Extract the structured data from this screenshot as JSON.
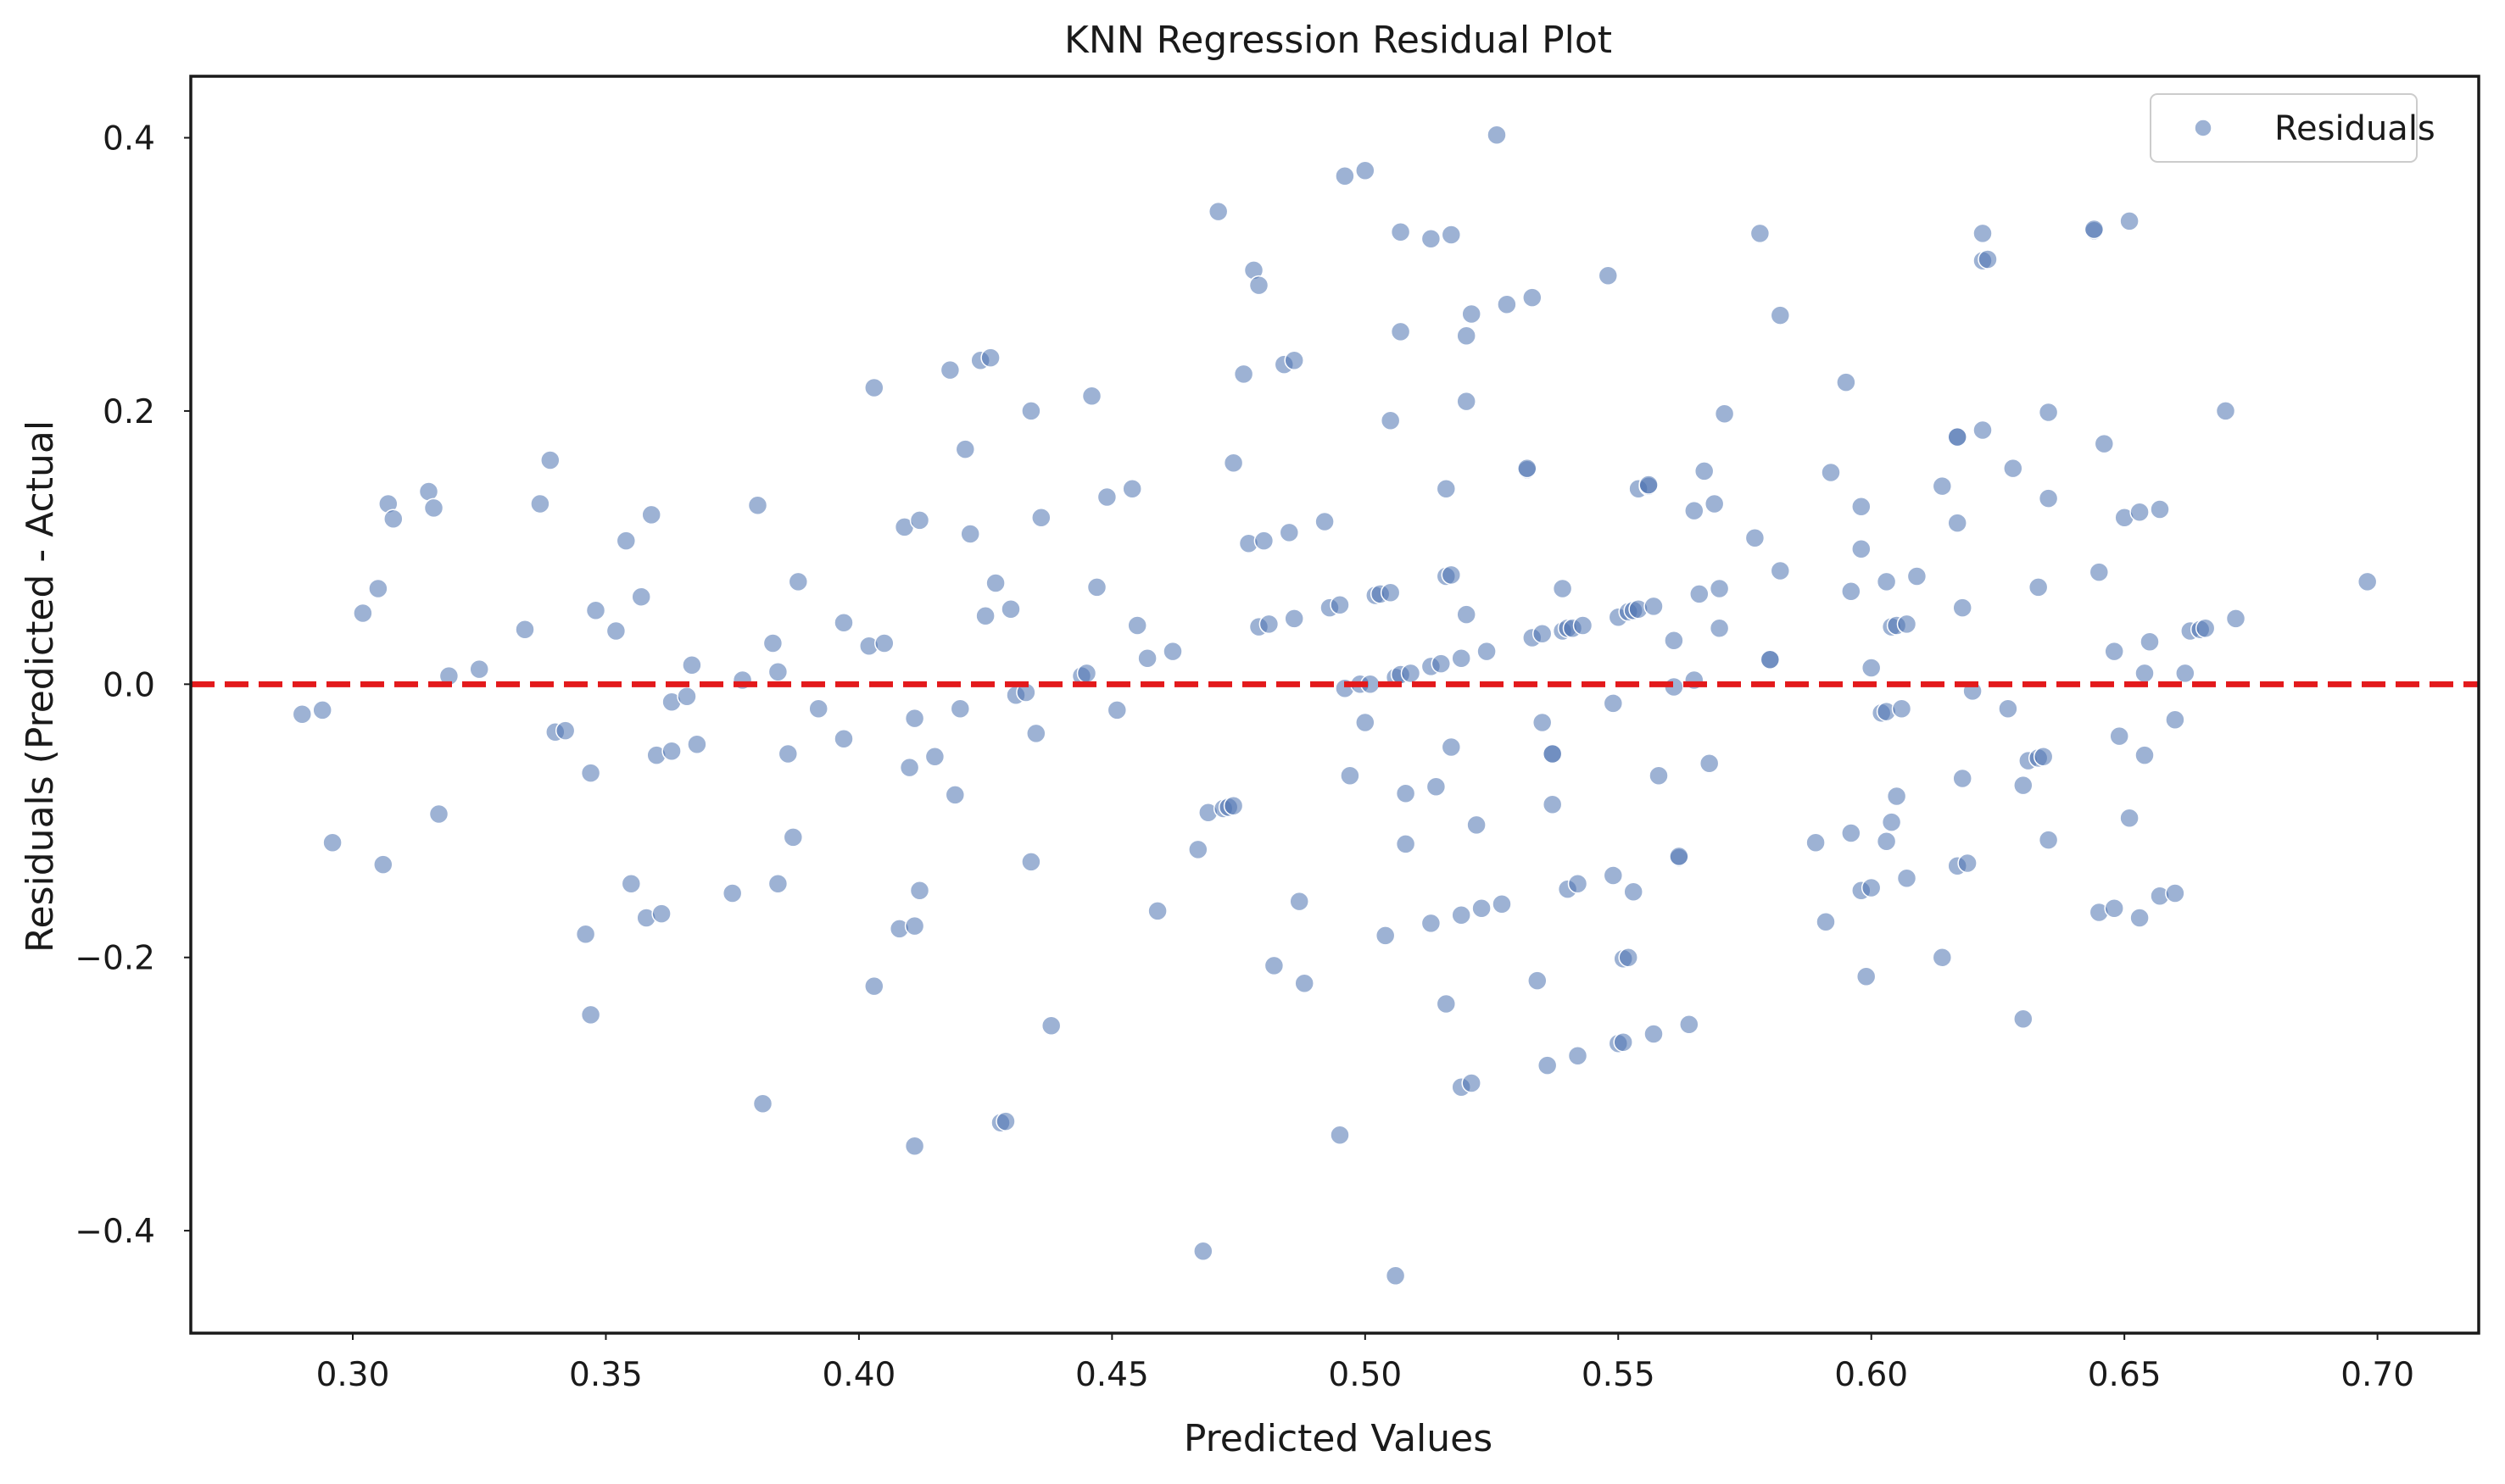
{
  "chart_data": {
    "type": "scatter",
    "title": "KNN Regression Residual Plot",
    "xlabel": "Predicted Values",
    "ylabel": "Residuals (Predicted - Actual",
    "xlim": [
      0.268,
      0.72
    ],
    "ylim": [
      -0.475,
      0.445
    ],
    "xticks": [
      0.3,
      0.35,
      0.4,
      0.45,
      0.5,
      0.55,
      0.6,
      0.65,
      0.7
    ],
    "xtick_labels": [
      "0.30",
      "0.35",
      "0.40",
      "0.45",
      "0.50",
      "0.55",
      "0.60",
      "0.65",
      "0.70"
    ],
    "yticks": [
      -0.4,
      -0.2,
      0.0,
      0.2,
      0.4
    ],
    "ytick_labels": [
      "−0.4",
      "−0.2",
      "0.0",
      "0.2",
      "0.4"
    ],
    "grid": false,
    "legend": {
      "placement": "top-right",
      "entries": [
        "Residuals"
      ]
    },
    "reference_line": {
      "y": 0.0,
      "color": "#e31a1c",
      "style": "dashed"
    },
    "colors": {
      "points": "#4c72b0",
      "reference_line": "#e31a1c",
      "frame": "#1a1a1a"
    },
    "series": [
      {
        "name": "Residuals",
        "points": [
          [
            0.29,
            -0.022
          ],
          [
            0.294,
            -0.019
          ],
          [
            0.296,
            -0.116
          ],
          [
            0.302,
            0.052
          ],
          [
            0.305,
            0.07
          ],
          [
            0.306,
            -0.132
          ],
          [
            0.307,
            0.132
          ],
          [
            0.308,
            0.121
          ],
          [
            0.315,
            0.141
          ],
          [
            0.316,
            0.129
          ],
          [
            0.317,
            -0.095
          ],
          [
            0.319,
            0.006
          ],
          [
            0.325,
            0.011
          ],
          [
            0.334,
            0.04
          ],
          [
            0.337,
            0.132
          ],
          [
            0.339,
            0.164
          ],
          [
            0.34,
            -0.035
          ],
          [
            0.342,
            -0.034
          ],
          [
            0.346,
            -0.183
          ],
          [
            0.347,
            -0.242
          ],
          [
            0.347,
            -0.065
          ],
          [
            0.348,
            0.054
          ],
          [
            0.352,
            0.039
          ],
          [
            0.354,
            0.105
          ],
          [
            0.355,
            -0.146
          ],
          [
            0.357,
            0.064
          ],
          [
            0.358,
            -0.171
          ],
          [
            0.359,
            0.124
          ],
          [
            0.36,
            -0.052
          ],
          [
            0.361,
            -0.168
          ],
          [
            0.363,
            -0.013
          ],
          [
            0.363,
            -0.049
          ],
          [
            0.366,
            -0.009
          ],
          [
            0.367,
            0.014
          ],
          [
            0.368,
            -0.044
          ],
          [
            0.375,
            -0.153
          ],
          [
            0.377,
            0.003
          ],
          [
            0.38,
            0.131
          ],
          [
            0.381,
            -0.307
          ],
          [
            0.383,
            0.03
          ],
          [
            0.384,
            -0.146
          ],
          [
            0.384,
            0.009
          ],
          [
            0.386,
            -0.051
          ],
          [
            0.387,
            -0.112
          ],
          [
            0.388,
            0.075
          ],
          [
            0.392,
            -0.018
          ],
          [
            0.397,
            -0.04
          ],
          [
            0.397,
            0.045
          ],
          [
            0.402,
            0.028
          ],
          [
            0.403,
            0.217
          ],
          [
            0.403,
            -0.221
          ],
          [
            0.405,
            0.03
          ],
          [
            0.408,
            -0.179
          ],
          [
            0.409,
            0.115
          ],
          [
            0.41,
            -0.061
          ],
          [
            0.411,
            -0.025
          ],
          [
            0.411,
            -0.177
          ],
          [
            0.412,
            -0.151
          ],
          [
            0.412,
            0.12
          ],
          [
            0.411,
            -0.338
          ],
          [
            0.415,
            -0.053
          ],
          [
            0.418,
            0.23
          ],
          [
            0.419,
            -0.081
          ],
          [
            0.42,
            -0.018
          ],
          [
            0.421,
            0.172
          ],
          [
            0.422,
            0.11
          ],
          [
            0.424,
            0.237
          ],
          [
            0.425,
            0.05
          ],
          [
            0.426,
            0.239
          ],
          [
            0.427,
            0.074
          ],
          [
            0.428,
            -0.321
          ],
          [
            0.429,
            -0.32
          ],
          [
            0.43,
            0.055
          ],
          [
            0.431,
            -0.008
          ],
          [
            0.433,
            -0.006
          ],
          [
            0.434,
            -0.13
          ],
          [
            0.434,
            0.2
          ],
          [
            0.435,
            -0.036
          ],
          [
            0.436,
            0.122
          ],
          [
            0.438,
            -0.25
          ],
          [
            0.444,
            0.006
          ],
          [
            0.445,
            0.008
          ],
          [
            0.446,
            0.211
          ],
          [
            0.447,
            0.071
          ],
          [
            0.449,
            0.137
          ],
          [
            0.451,
            -0.019
          ],
          [
            0.454,
            0.143
          ],
          [
            0.455,
            0.043
          ],
          [
            0.457,
            0.019
          ],
          [
            0.459,
            -0.166
          ],
          [
            0.462,
            0.024
          ],
          [
            0.467,
            -0.121
          ],
          [
            0.468,
            -0.415
          ],
          [
            0.469,
            -0.094
          ],
          [
            0.471,
            0.346
          ],
          [
            0.472,
            -0.091
          ],
          [
            0.473,
            -0.09
          ],
          [
            0.474,
            -0.089
          ],
          [
            0.474,
            0.162
          ],
          [
            0.476,
            0.227
          ],
          [
            0.477,
            0.103
          ],
          [
            0.478,
            0.303
          ],
          [
            0.479,
            0.292
          ],
          [
            0.479,
            0.042
          ],
          [
            0.48,
            0.105
          ],
          [
            0.481,
            0.044
          ],
          [
            0.482,
            -0.206
          ],
          [
            0.484,
            0.234
          ],
          [
            0.485,
            0.111
          ],
          [
            0.486,
            0.237
          ],
          [
            0.486,
            0.048
          ],
          [
            0.487,
            -0.159
          ],
          [
            0.488,
            -0.219
          ],
          [
            0.492,
            0.119
          ],
          [
            0.493,
            0.056
          ],
          [
            0.495,
            0.058
          ],
          [
            0.495,
            -0.33
          ],
          [
            0.496,
            -0.003
          ],
          [
            0.496,
            0.372
          ],
          [
            0.497,
            -0.067
          ],
          [
            0.499,
            0.0
          ],
          [
            0.5,
            0.376
          ],
          [
            0.5,
            -0.028
          ],
          [
            0.501,
            0.0
          ],
          [
            0.502,
            0.065
          ],
          [
            0.503,
            0.066
          ],
          [
            0.504,
            -0.184
          ],
          [
            0.505,
            0.193
          ],
          [
            0.505,
            0.067
          ],
          [
            0.506,
            0.005
          ],
          [
            0.506,
            -0.433
          ],
          [
            0.507,
            0.331
          ],
          [
            0.507,
            0.258
          ],
          [
            0.507,
            0.007
          ],
          [
            0.508,
            -0.08
          ],
          [
            0.508,
            -0.117
          ],
          [
            0.509,
            0.008
          ],
          [
            0.513,
            0.013
          ],
          [
            0.513,
            -0.175
          ],
          [
            0.513,
            0.326
          ],
          [
            0.514,
            -0.075
          ],
          [
            0.515,
            0.015
          ],
          [
            0.516,
            -0.234
          ],
          [
            0.516,
            0.079
          ],
          [
            0.516,
            0.143
          ],
          [
            0.517,
            0.08
          ],
          [
            0.517,
            0.329
          ],
          [
            0.517,
            -0.046
          ],
          [
            0.519,
            -0.295
          ],
          [
            0.519,
            0.019
          ],
          [
            0.519,
            -0.169
          ],
          [
            0.52,
            0.051
          ],
          [
            0.52,
            0.255
          ],
          [
            0.52,
            0.207
          ],
          [
            0.521,
            0.271
          ],
          [
            0.521,
            -0.292
          ],
          [
            0.522,
            -0.103
          ],
          [
            0.523,
            -0.164
          ],
          [
            0.524,
            0.024
          ],
          [
            0.526,
            0.402
          ],
          [
            0.527,
            -0.161
          ],
          [
            0.528,
            0.278
          ],
          [
            0.532,
            0.157
          ],
          [
            0.532,
            0.158
          ],
          [
            0.533,
            0.283
          ],
          [
            0.533,
            0.034
          ],
          [
            0.534,
            -0.217
          ],
          [
            0.535,
            -0.028
          ],
          [
            0.535,
            0.037
          ],
          [
            0.536,
            -0.279
          ],
          [
            0.537,
            -0.051
          ],
          [
            0.537,
            -0.088
          ],
          [
            0.537,
            -0.051
          ],
          [
            0.539,
            0.039
          ],
          [
            0.539,
            0.07
          ],
          [
            0.54,
            0.041
          ],
          [
            0.54,
            -0.15
          ],
          [
            0.541,
            0.041
          ],
          [
            0.542,
            -0.146
          ],
          [
            0.542,
            -0.272
          ],
          [
            0.543,
            0.043
          ],
          [
            0.548,
            0.299
          ],
          [
            0.549,
            -0.014
          ],
          [
            0.549,
            -0.14
          ],
          [
            0.55,
            0.049
          ],
          [
            0.55,
            -0.263
          ],
          [
            0.551,
            -0.262
          ],
          [
            0.551,
            -0.201
          ],
          [
            0.552,
            -0.2
          ],
          [
            0.552,
            0.053
          ],
          [
            0.553,
            0.054
          ],
          [
            0.553,
            -0.152
          ],
          [
            0.554,
            0.143
          ],
          [
            0.554,
            0.055
          ],
          [
            0.556,
            0.145
          ],
          [
            0.556,
            0.146
          ],
          [
            0.557,
            0.057
          ],
          [
            0.557,
            -0.256
          ],
          [
            0.558,
            -0.067
          ],
          [
            0.561,
            0.032
          ],
          [
            0.561,
            -0.002
          ],
          [
            0.562,
            -0.127
          ],
          [
            0.562,
            -0.126
          ],
          [
            0.564,
            -0.249
          ],
          [
            0.565,
            0.127
          ],
          [
            0.565,
            0.003
          ],
          [
            0.566,
            0.066
          ],
          [
            0.567,
            0.156
          ],
          [
            0.568,
            -0.058
          ],
          [
            0.569,
            0.132
          ],
          [
            0.57,
            0.041
          ],
          [
            0.57,
            0.07
          ],
          [
            0.571,
            0.198
          ],
          [
            0.577,
            0.107
          ],
          [
            0.578,
            0.33
          ],
          [
            0.58,
            0.018
          ],
          [
            0.58,
            0.018
          ],
          [
            0.582,
            0.27
          ],
          [
            0.582,
            0.083
          ],
          [
            0.589,
            -0.116
          ],
          [
            0.591,
            -0.174
          ],
          [
            0.592,
            0.155
          ],
          [
            0.595,
            0.221
          ],
          [
            0.596,
            -0.109
          ],
          [
            0.596,
            0.068
          ],
          [
            0.598,
            0.099
          ],
          [
            0.598,
            0.13
          ],
          [
            0.598,
            -0.151
          ],
          [
            0.599,
            -0.214
          ],
          [
            0.6,
            -0.149
          ],
          [
            0.6,
            0.012
          ],
          [
            0.602,
            -0.021
          ],
          [
            0.603,
            -0.02
          ],
          [
            0.603,
            -0.115
          ],
          [
            0.603,
            0.075
          ],
          [
            0.604,
            0.042
          ],
          [
            0.604,
            -0.101
          ],
          [
            0.605,
            -0.082
          ],
          [
            0.605,
            0.043
          ],
          [
            0.606,
            -0.018
          ],
          [
            0.607,
            0.044
          ],
          [
            0.607,
            -0.142
          ],
          [
            0.609,
            0.079
          ],
          [
            0.614,
            -0.2
          ],
          [
            0.614,
            0.145
          ],
          [
            0.617,
            0.181
          ],
          [
            0.617,
            0.118
          ],
          [
            0.617,
            -0.133
          ],
          [
            0.617,
            0.181
          ],
          [
            0.618,
            -0.069
          ],
          [
            0.618,
            0.056
          ],
          [
            0.619,
            -0.131
          ],
          [
            0.62,
            -0.005
          ],
          [
            0.622,
            0.33
          ],
          [
            0.622,
            0.31
          ],
          [
            0.622,
            0.186
          ],
          [
            0.623,
            0.311
          ],
          [
            0.627,
            -0.018
          ],
          [
            0.628,
            0.158
          ],
          [
            0.63,
            -0.245
          ],
          [
            0.63,
            -0.074
          ],
          [
            0.631,
            -0.056
          ],
          [
            0.633,
            -0.054
          ],
          [
            0.633,
            0.071
          ],
          [
            0.634,
            -0.053
          ],
          [
            0.635,
            -0.114
          ],
          [
            0.635,
            0.136
          ],
          [
            0.635,
            0.199
          ],
          [
            0.644,
            0.332
          ],
          [
            0.644,
            0.333
          ],
          [
            0.645,
            0.082
          ],
          [
            0.645,
            -0.167
          ],
          [
            0.646,
            0.176
          ],
          [
            0.648,
            -0.164
          ],
          [
            0.648,
            0.024
          ],
          [
            0.649,
            -0.038
          ],
          [
            0.65,
            0.122
          ],
          [
            0.651,
            0.339
          ],
          [
            0.651,
            -0.098
          ],
          [
            0.653,
            -0.171
          ],
          [
            0.653,
            0.126
          ],
          [
            0.654,
            -0.052
          ],
          [
            0.654,
            0.008
          ],
          [
            0.655,
            0.031
          ],
          [
            0.657,
            0.128
          ],
          [
            0.657,
            -0.155
          ],
          [
            0.66,
            -0.153
          ],
          [
            0.66,
            -0.026
          ],
          [
            0.662,
            0.008
          ],
          [
            0.663,
            0.039
          ],
          [
            0.665,
            0.04
          ],
          [
            0.666,
            0.041
          ],
          [
            0.67,
            0.2
          ],
          [
            0.672,
            0.048
          ],
          [
            0.698,
            0.075
          ]
        ]
      }
    ]
  }
}
